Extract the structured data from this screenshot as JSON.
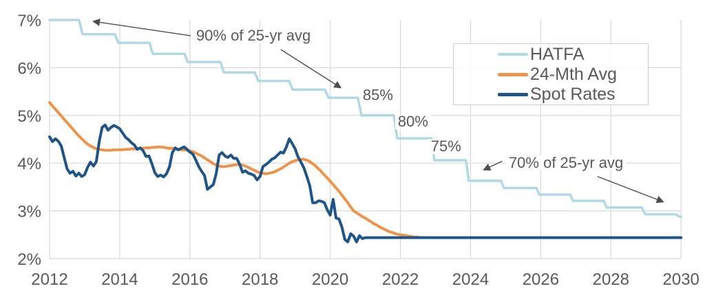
{
  "chart_data": {
    "type": "line",
    "title": "",
    "x_axis": {
      "range": [
        2012,
        2030
      ],
      "ticks": [
        2012,
        2014,
        2016,
        2018,
        2020,
        2022,
        2024,
        2026,
        2028,
        2030
      ]
    },
    "y_axis": {
      "range": [
        2,
        7
      ],
      "unit": "%",
      "ticks": [
        {
          "value": 7,
          "label": "7%"
        },
        {
          "value": 6,
          "label": "6%"
        },
        {
          "value": 5,
          "label": "5%"
        },
        {
          "value": 4,
          "label": "4%"
        },
        {
          "value": 3,
          "label": "3%"
        },
        {
          "value": 2,
          "label": "2%"
        }
      ]
    },
    "grid": true,
    "legend": {
      "position": "top-right"
    },
    "series": [
      {
        "id": "hatfa",
        "name": "HATFA",
        "color": "#afd9e5",
        "width": 3.5,
        "mode": "step",
        "points": [
          [
            2012.0,
            7.0
          ],
          [
            2012.84,
            7.0
          ],
          [
            2012.94,
            6.7
          ],
          [
            2013.86,
            6.7
          ],
          [
            2013.96,
            6.52
          ],
          [
            2014.85,
            6.52
          ],
          [
            2014.94,
            6.29
          ],
          [
            2015.85,
            6.29
          ],
          [
            2015.93,
            6.12
          ],
          [
            2016.87,
            6.12
          ],
          [
            2016.97,
            5.9
          ],
          [
            2017.85,
            5.9
          ],
          [
            2017.95,
            5.72
          ],
          [
            2018.83,
            5.72
          ],
          [
            2018.93,
            5.54
          ],
          [
            2019.85,
            5.54
          ],
          [
            2019.95,
            5.37
          ],
          [
            2020.79,
            5.37
          ],
          [
            2020.89,
            5.0
          ],
          [
            2021.81,
            5.0
          ],
          [
            2021.91,
            4.52
          ],
          [
            2022.89,
            4.52
          ],
          [
            2022.97,
            4.06
          ],
          [
            2023.87,
            4.06
          ],
          [
            2023.95,
            3.63
          ],
          [
            2024.87,
            3.63
          ],
          [
            2024.95,
            3.48
          ],
          [
            2025.88,
            3.48
          ],
          [
            2025.96,
            3.34
          ],
          [
            2026.84,
            3.34
          ],
          [
            2026.92,
            3.21
          ],
          [
            2027.8,
            3.21
          ],
          [
            2027.88,
            3.07
          ],
          [
            2028.88,
            3.07
          ],
          [
            2028.98,
            2.93
          ],
          [
            2029.85,
            2.93
          ],
          [
            2029.95,
            2.88
          ],
          [
            2030.0,
            2.88
          ]
        ]
      },
      {
        "id": "avg24",
        "name": "24-Mth Avg",
        "color": "#ed944a",
        "width": 4,
        "mode": "monthly",
        "start_year": 2012,
        "extend_to_year": 2030,
        "values": [
          5.27,
          5.2,
          5.13,
          5.06,
          4.99,
          4.92,
          4.85,
          4.78,
          4.71,
          4.64,
          4.57,
          4.51,
          4.45,
          4.4,
          4.36,
          4.33,
          4.3,
          4.29,
          4.28,
          4.27,
          4.27,
          4.27,
          4.28,
          4.28,
          4.28,
          4.28,
          4.29,
          4.29,
          4.3,
          4.3,
          4.3,
          4.31,
          4.31,
          4.32,
          4.32,
          4.33,
          4.33,
          4.34,
          4.34,
          4.33,
          4.32,
          4.31,
          4.31,
          4.3,
          4.29,
          4.28,
          4.28,
          4.27,
          4.26,
          4.24,
          4.21,
          4.18,
          4.15,
          4.11,
          4.07,
          4.03,
          3.99,
          3.96,
          3.94,
          3.93,
          3.93,
          3.94,
          3.95,
          3.96,
          3.97,
          3.97,
          3.96,
          3.94,
          3.91,
          3.88,
          3.85,
          3.82,
          3.8,
          3.79,
          3.78,
          3.79,
          3.8,
          3.82,
          3.85,
          3.88,
          3.92,
          3.96,
          4.0,
          4.03,
          4.05,
          4.07,
          4.08,
          4.08,
          4.06,
          4.03,
          3.99,
          3.94,
          3.88,
          3.82,
          3.75,
          3.69,
          3.62,
          3.55,
          3.48,
          3.41,
          3.33,
          3.25,
          3.17,
          3.08,
          3.0,
          2.96,
          2.92,
          2.88,
          2.85,
          2.81,
          2.77,
          2.73,
          2.7,
          2.66,
          2.63,
          2.6,
          2.57,
          2.55,
          2.53,
          2.51,
          2.5,
          2.49,
          2.48,
          2.47,
          2.46,
          2.45,
          2.45,
          2.44,
          2.44,
          2.44,
          2.44,
          2.44
        ]
      },
      {
        "id": "spot",
        "name": "Spot Rates",
        "color": "#1f5488",
        "width": 4,
        "mode": "monthly",
        "start_year": 2012,
        "extend_to_year": 2030,
        "values": [
          4.55,
          4.45,
          4.51,
          4.46,
          4.36,
          4.12,
          3.88,
          3.79,
          3.83,
          3.73,
          3.79,
          3.72,
          3.76,
          3.91,
          4.02,
          3.94,
          4.03,
          4.46,
          4.75,
          4.8,
          4.69,
          4.75,
          4.79,
          4.76,
          4.72,
          4.63,
          4.54,
          4.49,
          4.43,
          4.38,
          4.29,
          4.32,
          4.26,
          4.14,
          4.15,
          3.99,
          3.8,
          3.72,
          3.75,
          3.71,
          3.78,
          3.92,
          4.22,
          4.32,
          4.28,
          4.31,
          4.34,
          4.29,
          4.23,
          4.19,
          4.07,
          3.93,
          3.83,
          3.74,
          3.45,
          3.5,
          3.55,
          3.78,
          4.17,
          4.22,
          4.15,
          4.12,
          4.17,
          4.1,
          4.1,
          3.98,
          3.81,
          3.84,
          3.79,
          3.77,
          3.74,
          3.65,
          3.72,
          3.93,
          3.97,
          4.02,
          4.08,
          4.11,
          4.17,
          4.23,
          4.21,
          4.34,
          4.51,
          4.41,
          4.3,
          4.13,
          4.02,
          3.9,
          3.72,
          3.53,
          3.17,
          3.17,
          3.21,
          3.2,
          3.17,
          3.02,
          2.91,
          3.24,
          2.85,
          2.83,
          2.66,
          2.4,
          2.35,
          2.52,
          2.47,
          2.35,
          2.48,
          2.42,
          2.44,
          2.44,
          2.44,
          2.44,
          2.44,
          2.44
        ]
      }
    ],
    "annotations": [
      {
        "text": "90% of 25-yr avg",
        "year": 2017.81,
        "value": 6.68,
        "arrows": [
          {
            "from": [
              2016.02,
              6.67
            ],
            "to": [
              2013.25,
              6.97
            ]
          },
          {
            "from": [
              2018.59,
              6.38
            ],
            "to": [
              2020.3,
              5.58
            ]
          }
        ]
      },
      {
        "text": "85%",
        "year": 2021.36,
        "value": 5.44,
        "arrows": []
      },
      {
        "text": "80%",
        "year": 2022.36,
        "value": 4.88,
        "arrows": []
      },
      {
        "text": "75%",
        "year": 2023.3,
        "value": 4.36,
        "arrows": []
      },
      {
        "text": "70% of 25-yr avg",
        "year": 2026.72,
        "value": 4.02,
        "arrows": [
          {
            "from": [
              2024.9,
              4.04
            ],
            "to": [
              2024.38,
              3.86
            ]
          },
          {
            "from": [
              2027.62,
              3.72
            ],
            "to": [
              2029.49,
              3.19
            ]
          }
        ]
      }
    ],
    "colors": {
      "grid": "#d9d9d9",
      "text": "#595959",
      "arrow": "#4d4d4d",
      "legend_border": "#cccccc",
      "background": "#ffffff"
    }
  }
}
